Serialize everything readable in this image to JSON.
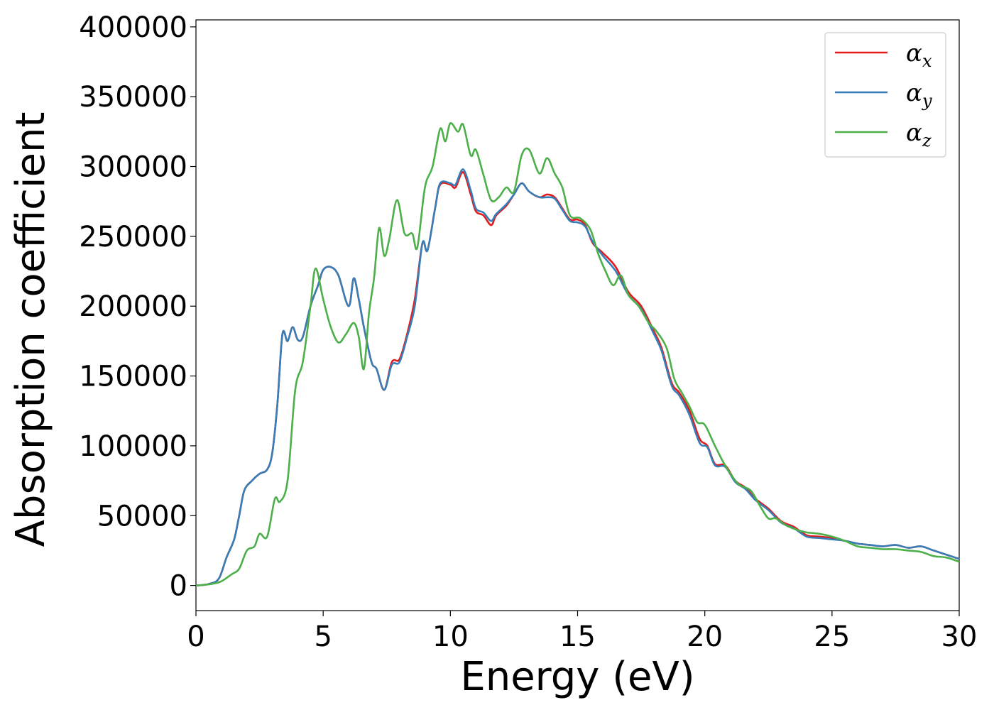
{
  "chart_data": {
    "type": "line",
    "title": "",
    "xlabel": "Energy (eV)",
    "ylabel": "Absorption coefficient",
    "xlim": [
      0,
      30
    ],
    "ylim": [
      -18000,
      405000
    ],
    "xticks": [
      0,
      5,
      10,
      15,
      20,
      25,
      30
    ],
    "yticks": [
      0,
      50000,
      100000,
      150000,
      200000,
      250000,
      300000,
      350000,
      400000
    ],
    "grid": false,
    "legend_position": "top-right",
    "series": [
      {
        "name": "α",
        "subscript": "x",
        "color": "#e41a1c",
        "points": [
          [
            0,
            0
          ],
          [
            0.5,
            1000
          ],
          [
            0.9,
            5000
          ],
          [
            1.2,
            20000
          ],
          [
            1.5,
            33000
          ],
          [
            1.7,
            50000
          ],
          [
            1.9,
            68000
          ],
          [
            2.2,
            75000
          ],
          [
            2.5,
            80000
          ],
          [
            2.8,
            83000
          ],
          [
            3.0,
            95000
          ],
          [
            3.2,
            130000
          ],
          [
            3.4,
            180000
          ],
          [
            3.6,
            175000
          ],
          [
            3.8,
            185000
          ],
          [
            4.0,
            176000
          ],
          [
            4.2,
            178000
          ],
          [
            4.5,
            200000
          ],
          [
            4.8,
            215000
          ],
          [
            5.0,
            226000
          ],
          [
            5.3,
            228000
          ],
          [
            5.6,
            222000
          ],
          [
            6.0,
            200000
          ],
          [
            6.2,
            220000
          ],
          [
            6.4,
            205000
          ],
          [
            6.6,
            185000
          ],
          [
            6.9,
            160000
          ],
          [
            7.1,
            155000
          ],
          [
            7.4,
            140000
          ],
          [
            7.7,
            160000
          ],
          [
            8.0,
            162000
          ],
          [
            8.3,
            180000
          ],
          [
            8.6,
            205000
          ],
          [
            8.9,
            245000
          ],
          [
            9.1,
            240000
          ],
          [
            9.4,
            270000
          ],
          [
            9.6,
            287000
          ],
          [
            10.0,
            287000
          ],
          [
            10.2,
            285000
          ],
          [
            10.5,
            296000
          ],
          [
            10.8,
            280000
          ],
          [
            11.0,
            268000
          ],
          [
            11.3,
            265000
          ],
          [
            11.6,
            258000
          ],
          [
            11.8,
            265000
          ],
          [
            12.2,
            272000
          ],
          [
            12.5,
            280000
          ],
          [
            12.8,
            288000
          ],
          [
            13.1,
            282000
          ],
          [
            13.5,
            278000
          ],
          [
            13.8,
            280000
          ],
          [
            14.1,
            278000
          ],
          [
            14.4,
            270000
          ],
          [
            14.7,
            262000
          ],
          [
            15.0,
            262000
          ],
          [
            15.3,
            258000
          ],
          [
            15.6,
            245000
          ],
          [
            16.0,
            238000
          ],
          [
            16.5,
            228000
          ],
          [
            17.0,
            210000
          ],
          [
            17.5,
            200000
          ],
          [
            18.0,
            182000
          ],
          [
            18.3,
            170000
          ],
          [
            18.7,
            145000
          ],
          [
            19.0,
            138000
          ],
          [
            19.4,
            125000
          ],
          [
            19.8,
            105000
          ],
          [
            20.1,
            100000
          ],
          [
            20.4,
            87000
          ],
          [
            20.8,
            86000
          ],
          [
            21.2,
            75000
          ],
          [
            21.6,
            70000
          ],
          [
            22.0,
            62000
          ],
          [
            22.5,
            55000
          ],
          [
            23.0,
            46000
          ],
          [
            23.5,
            42000
          ],
          [
            24.0,
            36000
          ],
          [
            24.5,
            35000
          ],
          [
            25.0,
            34000
          ],
          [
            25.5,
            32000
          ],
          [
            26.0,
            30000
          ],
          [
            26.5,
            29000
          ],
          [
            27.0,
            28000
          ],
          [
            27.5,
            29000
          ],
          [
            28.0,
            27000
          ],
          [
            28.5,
            28000
          ],
          [
            29.0,
            25000
          ],
          [
            29.5,
            22000
          ],
          [
            30.0,
            19000
          ]
        ]
      },
      {
        "name": "α",
        "subscript": "y",
        "color": "#377eb8",
        "points": [
          [
            0,
            0
          ],
          [
            0.5,
            1000
          ],
          [
            0.9,
            5000
          ],
          [
            1.2,
            20000
          ],
          [
            1.5,
            33000
          ],
          [
            1.7,
            50000
          ],
          [
            1.9,
            68000
          ],
          [
            2.2,
            75000
          ],
          [
            2.5,
            80000
          ],
          [
            2.8,
            83000
          ],
          [
            3.0,
            95000
          ],
          [
            3.2,
            130000
          ],
          [
            3.4,
            180000
          ],
          [
            3.6,
            175000
          ],
          [
            3.8,
            185000
          ],
          [
            4.0,
            176000
          ],
          [
            4.2,
            178000
          ],
          [
            4.5,
            200000
          ],
          [
            4.8,
            215000
          ],
          [
            5.0,
            226000
          ],
          [
            5.3,
            228000
          ],
          [
            5.6,
            222000
          ],
          [
            6.0,
            200000
          ],
          [
            6.2,
            220000
          ],
          [
            6.4,
            205000
          ],
          [
            6.6,
            185000
          ],
          [
            6.9,
            160000
          ],
          [
            7.1,
            155000
          ],
          [
            7.4,
            140000
          ],
          [
            7.7,
            158000
          ],
          [
            8.0,
            160000
          ],
          [
            8.3,
            178000
          ],
          [
            8.6,
            200000
          ],
          [
            8.9,
            245000
          ],
          [
            9.1,
            240000
          ],
          [
            9.4,
            270000
          ],
          [
            9.6,
            288000
          ],
          [
            10.0,
            288000
          ],
          [
            10.2,
            287000
          ],
          [
            10.5,
            298000
          ],
          [
            10.8,
            283000
          ],
          [
            11.0,
            270000
          ],
          [
            11.3,
            267000
          ],
          [
            11.6,
            261000
          ],
          [
            11.8,
            266000
          ],
          [
            12.2,
            273000
          ],
          [
            12.5,
            280000
          ],
          [
            12.8,
            288000
          ],
          [
            13.1,
            282000
          ],
          [
            13.5,
            278000
          ],
          [
            13.8,
            278000
          ],
          [
            14.1,
            277000
          ],
          [
            14.4,
            269000
          ],
          [
            14.7,
            261000
          ],
          [
            15.0,
            260000
          ],
          [
            15.3,
            257000
          ],
          [
            15.6,
            246000
          ],
          [
            16.0,
            236000
          ],
          [
            16.5,
            225000
          ],
          [
            17.0,
            208000
          ],
          [
            17.5,
            198000
          ],
          [
            18.0,
            180000
          ],
          [
            18.3,
            168000
          ],
          [
            18.7,
            143000
          ],
          [
            19.0,
            136000
          ],
          [
            19.4,
            122000
          ],
          [
            19.8,
            102000
          ],
          [
            20.1,
            99000
          ],
          [
            20.4,
            86000
          ],
          [
            20.8,
            85000
          ],
          [
            21.2,
            74000
          ],
          [
            21.6,
            69000
          ],
          [
            22.0,
            61000
          ],
          [
            22.5,
            54000
          ],
          [
            23.0,
            45000
          ],
          [
            23.5,
            41000
          ],
          [
            24.0,
            35000
          ],
          [
            24.5,
            34000
          ],
          [
            25.0,
            33000
          ],
          [
            25.5,
            32000
          ],
          [
            26.0,
            30000
          ],
          [
            26.5,
            29000
          ],
          [
            27.0,
            28000
          ],
          [
            27.5,
            29000
          ],
          [
            28.0,
            27000
          ],
          [
            28.5,
            28000
          ],
          [
            29.0,
            25000
          ],
          [
            29.5,
            22000
          ],
          [
            30.0,
            19000
          ]
        ]
      },
      {
        "name": "α",
        "subscript": "z",
        "color": "#4daf4a",
        "points": [
          [
            0,
            0
          ],
          [
            0.6,
            1000
          ],
          [
            1.0,
            3000
          ],
          [
            1.4,
            8000
          ],
          [
            1.7,
            12000
          ],
          [
            2.0,
            25000
          ],
          [
            2.3,
            28000
          ],
          [
            2.5,
            37000
          ],
          [
            2.8,
            35000
          ],
          [
            3.1,
            62000
          ],
          [
            3.3,
            60000
          ],
          [
            3.6,
            75000
          ],
          [
            3.9,
            140000
          ],
          [
            4.2,
            160000
          ],
          [
            4.5,
            200000
          ],
          [
            4.7,
            227000
          ],
          [
            5.0,
            205000
          ],
          [
            5.3,
            185000
          ],
          [
            5.6,
            174000
          ],
          [
            5.9,
            180000
          ],
          [
            6.2,
            188000
          ],
          [
            6.4,
            178000
          ],
          [
            6.6,
            155000
          ],
          [
            6.8,
            195000
          ],
          [
            7.0,
            220000
          ],
          [
            7.2,
            256000
          ],
          [
            7.4,
            236000
          ],
          [
            7.6,
            248000
          ],
          [
            7.9,
            276000
          ],
          [
            8.2,
            252000
          ],
          [
            8.5,
            252000
          ],
          [
            8.7,
            242000
          ],
          [
            9.0,
            285000
          ],
          [
            9.3,
            300000
          ],
          [
            9.6,
            327000
          ],
          [
            9.8,
            318000
          ],
          [
            10.0,
            331000
          ],
          [
            10.3,
            325000
          ],
          [
            10.5,
            330000
          ],
          [
            10.8,
            308000
          ],
          [
            11.0,
            312000
          ],
          [
            11.3,
            294000
          ],
          [
            11.6,
            276000
          ],
          [
            11.9,
            278000
          ],
          [
            12.2,
            285000
          ],
          [
            12.5,
            282000
          ],
          [
            12.8,
            308000
          ],
          [
            13.1,
            312000
          ],
          [
            13.5,
            295000
          ],
          [
            13.8,
            306000
          ],
          [
            14.1,
            295000
          ],
          [
            14.4,
            285000
          ],
          [
            14.7,
            265000
          ],
          [
            15.1,
            263000
          ],
          [
            15.5,
            255000
          ],
          [
            15.8,
            238000
          ],
          [
            16.1,
            225000
          ],
          [
            16.4,
            215000
          ],
          [
            16.7,
            222000
          ],
          [
            17.0,
            208000
          ],
          [
            17.4,
            200000
          ],
          [
            17.8,
            188000
          ],
          [
            18.1,
            182000
          ],
          [
            18.5,
            170000
          ],
          [
            18.8,
            148000
          ],
          [
            19.1,
            138000
          ],
          [
            19.4,
            128000
          ],
          [
            19.7,
            117000
          ],
          [
            20.0,
            115000
          ],
          [
            20.4,
            100000
          ],
          [
            20.8,
            86000
          ],
          [
            21.3,
            73000
          ],
          [
            21.8,
            68000
          ],
          [
            22.2,
            56000
          ],
          [
            22.5,
            48000
          ],
          [
            22.8,
            48000
          ],
          [
            23.2,
            43000
          ],
          [
            23.6,
            40000
          ],
          [
            24.0,
            38000
          ],
          [
            24.5,
            37000
          ],
          [
            25.0,
            35000
          ],
          [
            25.5,
            32000
          ],
          [
            26.0,
            28000
          ],
          [
            26.5,
            27000
          ],
          [
            27.0,
            26000
          ],
          [
            27.5,
            26000
          ],
          [
            28.0,
            25000
          ],
          [
            28.5,
            24000
          ],
          [
            29.0,
            21000
          ],
          [
            29.5,
            20000
          ],
          [
            30.0,
            17000
          ]
        ]
      }
    ]
  }
}
